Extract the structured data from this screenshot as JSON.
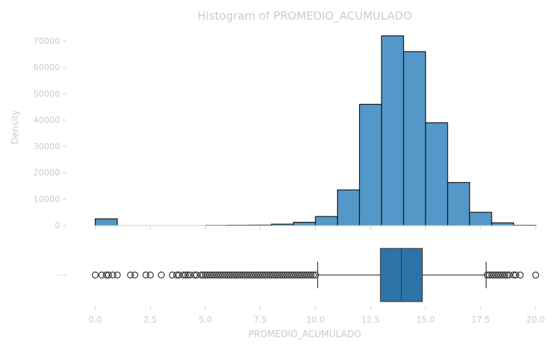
{
  "chart_data": [
    {
      "type": "histogram",
      "title": "Histogram of PROMEDIO_ACUMULADO",
      "xlabel": "",
      "ylabel": "Density",
      "xlim": [
        -1,
        20
      ],
      "ylim": [
        0,
        75000
      ],
      "y_ticks": [
        0,
        10000,
        20000,
        30000,
        40000,
        50000,
        60000,
        70000
      ],
      "bin_width": 1,
      "bins": [
        {
          "start": 0,
          "end": 1,
          "count": 2500
        },
        {
          "start": 1,
          "end": 2,
          "count": 0
        },
        {
          "start": 2,
          "end": 3,
          "count": 0
        },
        {
          "start": 3,
          "end": 4,
          "count": 0
        },
        {
          "start": 4,
          "end": 5,
          "count": 0
        },
        {
          "start": 5,
          "end": 6,
          "count": 50
        },
        {
          "start": 6,
          "end": 7,
          "count": 100
        },
        {
          "start": 7,
          "end": 8,
          "count": 150
        },
        {
          "start": 8,
          "end": 9,
          "count": 500
        },
        {
          "start": 9,
          "end": 10,
          "count": 1200
        },
        {
          "start": 10,
          "end": 11,
          "count": 3400
        },
        {
          "start": 11,
          "end": 12,
          "count": 13500
        },
        {
          "start": 12,
          "end": 13,
          "count": 46000
        },
        {
          "start": 13,
          "end": 14,
          "count": 72000
        },
        {
          "start": 14,
          "end": 15,
          "count": 66000
        },
        {
          "start": 15,
          "end": 16,
          "count": 39000
        },
        {
          "start": 16,
          "end": 17,
          "count": 16300
        },
        {
          "start": 17,
          "end": 18,
          "count": 5000
        },
        {
          "start": 18,
          "end": 19,
          "count": 1000
        },
        {
          "start": 19,
          "end": 20,
          "count": 100
        }
      ],
      "bar_color": "#5398c8",
      "grid": false
    },
    {
      "type": "boxplot",
      "xlabel": "PROMEDIO_ACUMULADO",
      "y_tick_label": "-",
      "xlim": [
        -1,
        20
      ],
      "x_ticks": [
        0.0,
        2.5,
        5.0,
        7.5,
        10.0,
        12.5,
        15.0,
        17.5,
        20.0
      ],
      "x_tick_labels": [
        "0.0",
        "2.5",
        "5.0",
        "7.5",
        "10.0",
        "12.5",
        "15.0",
        "17.5",
        "20.0"
      ],
      "q1": 12.95,
      "median": 13.9,
      "q3": 14.85,
      "whisker_low": 10.1,
      "whisker_high": 17.75,
      "outliers_low": [
        0.0,
        0.3,
        0.5,
        0.6,
        0.8,
        1.0,
        1.6,
        1.8,
        2.3,
        2.5,
        3.0,
        3.5,
        3.7,
        3.8,
        4.0,
        4.1,
        4.2,
        4.3,
        4.5,
        4.6,
        4.8,
        4.9,
        5.0,
        5.1,
        5.2,
        5.3,
        5.4,
        5.5,
        5.6,
        5.7,
        5.8,
        5.9,
        6.0,
        6.1,
        6.2,
        6.3,
        6.4,
        6.5,
        6.6,
        6.7,
        6.8,
        6.9,
        7.0,
        7.1,
        7.2,
        7.3,
        7.4,
        7.5,
        7.6,
        7.7,
        7.8,
        7.9,
        8.0,
        8.1,
        8.2,
        8.3,
        8.4,
        8.5,
        8.6,
        8.7,
        8.8,
        8.9,
        9.0,
        9.1,
        9.2,
        9.3,
        9.4,
        9.5,
        9.6,
        9.7,
        9.8,
        9.9,
        10.0
      ],
      "outliers_high": [
        17.8,
        17.9,
        18.0,
        18.1,
        18.2,
        18.3,
        18.4,
        18.5,
        18.6,
        18.7,
        18.8,
        19.0,
        19.1,
        19.3,
        20.0
      ],
      "box_color": "#2e73a8"
    }
  ]
}
